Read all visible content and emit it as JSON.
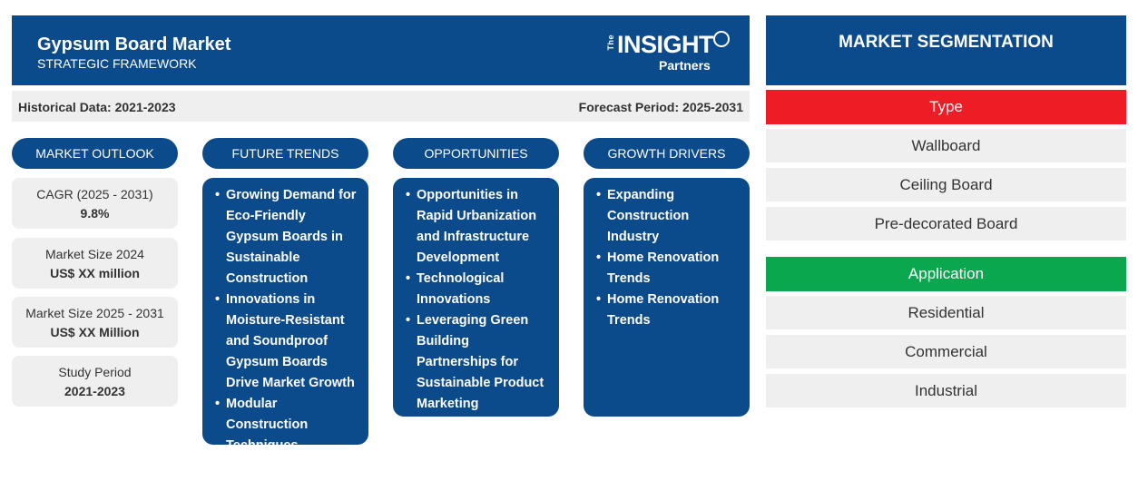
{
  "header": {
    "title": "Gypsum Board Market",
    "subtitle": "STRATEGIC FRAMEWORK",
    "logo": {
      "the": "The",
      "insight": "INSIGHT",
      "partners": "Partners"
    }
  },
  "periods": {
    "historical": "Historical Data: 2021-2023",
    "forecast": "Forecast Period: 2025-2031"
  },
  "columns": {
    "outlook": "MARKET OUTLOOK",
    "trends": "FUTURE TRENDS",
    "opportunities": "OPPORTUNITIES",
    "drivers": "GROWTH DRIVERS"
  },
  "outlook": [
    {
      "label": "CAGR (2025 - 2031)",
      "value": "9.8%"
    },
    {
      "label": "Market Size 2024",
      "value": "US$ XX million"
    },
    {
      "label": "Market Size 2025 - 2031",
      "value": "US$ XX Million"
    },
    {
      "label": "Study Period",
      "value": "2021-2023"
    }
  ],
  "trends": [
    "Growing Demand for Eco-Friendly Gypsum Boards in Sustainable Construction",
    "Innovations in Moisture-Resistant and Soundproof Gypsum Boards Drive Market Growth",
    "Modular Construction Techniques"
  ],
  "opportunities": [
    "Opportunities in Rapid Urbanization and Infrastructure Development",
    "Technological Innovations",
    "Leveraging Green Building Partnerships for Sustainable Product Marketing"
  ],
  "drivers": [
    "Expanding Construction Industry",
    "Home Renovation Trends",
    "Home Renovation Trends"
  ],
  "segmentation": {
    "title": "MARKET SEGMENTATION",
    "type": {
      "label": "Type",
      "color": "#ee1c25",
      "items": [
        "Wallboard",
        "Ceiling Board",
        "Pre-decorated Board"
      ]
    },
    "application": {
      "label": "Application",
      "color": "#0aa74f",
      "items": [
        "Residential",
        "Commercial",
        "Industrial"
      ]
    }
  }
}
